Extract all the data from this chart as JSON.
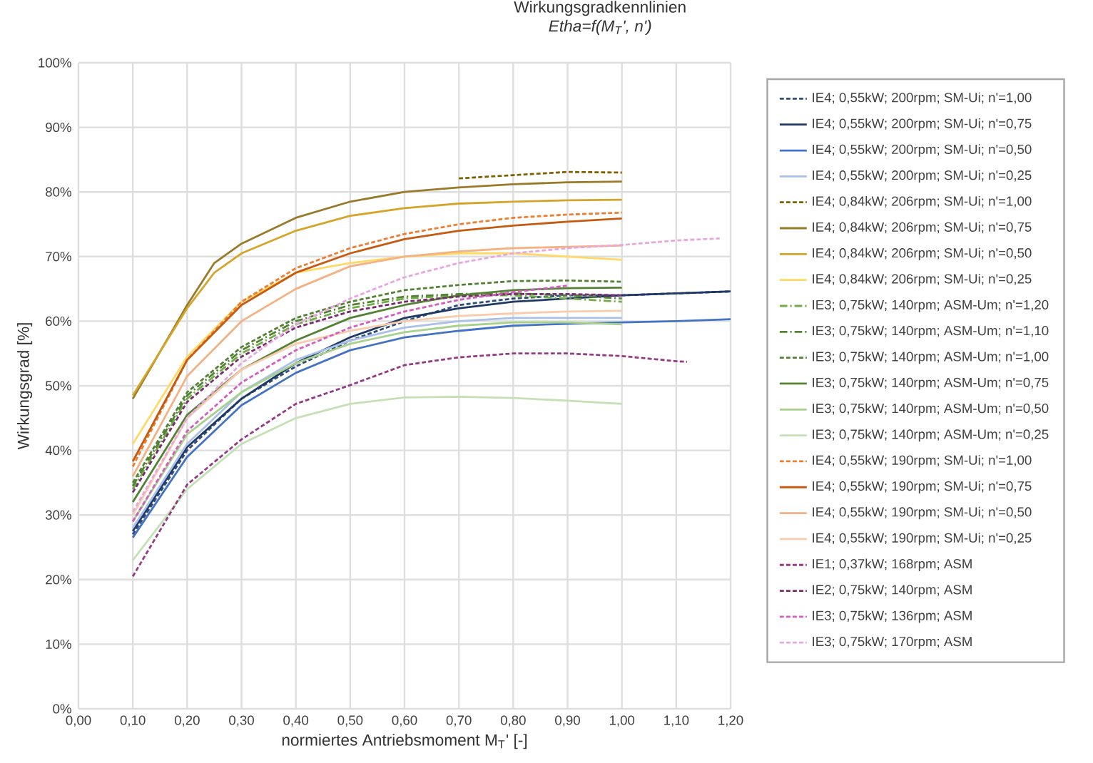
{
  "chart_data": {
    "type": "line",
    "title": "Wirkungsgradkennlinien",
    "subtitle": "Etha=f(M$_{T}$', n')",
    "xlabel": "normiertes Antriebsmoment M$_{T}$' [-]",
    "ylabel": "Wirkungsgrad [%]",
    "xlim": [
      0,
      1.2
    ],
    "ylim": [
      0,
      100
    ],
    "xticks": [
      {
        "value": 0,
        "label": "0,00"
      },
      {
        "value": 0.1,
        "label": "0,10"
      },
      {
        "value": 0.2,
        "label": "0,20"
      },
      {
        "value": 0.3,
        "label": "0,30"
      },
      {
        "value": 0.4,
        "label": "0,40"
      },
      {
        "value": 0.5,
        "label": "0,50"
      },
      {
        "value": 0.6,
        "label": "0,60"
      },
      {
        "value": 0.7,
        "label": "0,70"
      },
      {
        "value": 0.8,
        "label": "0,80"
      },
      {
        "value": 0.9,
        "label": "0,90"
      },
      {
        "value": 1.0,
        "label": "1,00"
      },
      {
        "value": 1.1,
        "label": "1,10"
      },
      {
        "value": 1.2,
        "label": "1,20"
      }
    ],
    "yticks": [
      {
        "value": 0,
        "label": "0%"
      },
      {
        "value": 10,
        "label": "10%"
      },
      {
        "value": 20,
        "label": "20%"
      },
      {
        "value": 30,
        "label": "30%"
      },
      {
        "value": 40,
        "label": "40%"
      },
      {
        "value": 50,
        "label": "50%"
      },
      {
        "value": 60,
        "label": "60%"
      },
      {
        "value": 70,
        "label": "70%"
      },
      {
        "value": 80,
        "label": "80%"
      },
      {
        "value": 90,
        "label": "90%"
      },
      {
        "value": 100,
        "label": "100%"
      }
    ],
    "grid": true,
    "legend": "right",
    "series": [
      {
        "name": "IE4; 0,55kW; 200rpm; SM-Ui; n'=1,00",
        "color": "#2f4b7c",
        "line_style": "dashed",
        "x": [
          0.1,
          0.2,
          0.3,
          0.4,
          0.5,
          0.6,
          0.7,
          0.8,
          0.9,
          1.0,
          1.1,
          1.2
        ],
        "values": [
          27,
          40,
          48,
          53,
          57,
          60,
          62.5,
          63.5,
          64,
          64,
          64.3,
          64.6
        ]
      },
      {
        "name": "IE4; 0,55kW; 200rpm; SM-Ui; n'=0,75",
        "color": "#1f3864",
        "line_style": "solid",
        "x": [
          0.1,
          0.2,
          0.3,
          0.4,
          0.5,
          0.6,
          0.7,
          0.8,
          0.9,
          1.0,
          1.1,
          1.2
        ],
        "values": [
          27.5,
          40.5,
          48,
          53.5,
          57.5,
          60.5,
          62,
          63,
          63.5,
          64,
          64.3,
          64.6
        ]
      },
      {
        "name": "IE4; 0,55kW; 200rpm; SM-Ui; n'=0,50",
        "color": "#4472c4",
        "line_style": "solid",
        "x": [
          0.1,
          0.2,
          0.3,
          0.4,
          0.5,
          0.6,
          0.7,
          0.8,
          0.9,
          1.0,
          1.1,
          1.2
        ],
        "values": [
          26.5,
          39,
          47,
          52,
          55.5,
          57.5,
          58.5,
          59.3,
          59.6,
          59.8,
          60,
          60.3
        ]
      },
      {
        "name": "IE4; 0,55kW; 200rpm; SM-Ui; n'=0,25",
        "color": "#a9c1e8",
        "line_style": "solid",
        "x": [
          0.1,
          0.2,
          0.3,
          0.4,
          0.5,
          0.6,
          0.7,
          0.8,
          0.9,
          1.0
        ],
        "values": [
          28,
          41,
          49,
          54,
          57,
          59,
          60,
          60.5,
          60.5,
          60.5
        ]
      },
      {
        "name": "IE4; 0,84kW; 206rpm; SM-Ui; n'=1,00",
        "color": "#7f6000",
        "line_style": "dashed",
        "x": [
          0.7,
          0.8,
          0.9,
          1.0
        ],
        "values": [
          82.1,
          82.6,
          83.1,
          83
        ]
      },
      {
        "name": "IE4; 0,84kW; 206rpm; SM-Ui; n'=0,75",
        "color": "#997a2a",
        "line_style": "solid",
        "x": [
          0.1,
          0.2,
          0.25,
          0.3,
          0.4,
          0.5,
          0.6,
          0.7,
          0.8,
          0.9,
          1.0
        ],
        "values": [
          48,
          62.5,
          69,
          72,
          76,
          78.5,
          80,
          80.7,
          81.2,
          81.5,
          81.6
        ]
      },
      {
        "name": "IE4; 0,84kW; 206rpm; SM-Ui; n'=0,50",
        "color": "#d4a52a",
        "line_style": "solid",
        "x": [
          0.1,
          0.2,
          0.25,
          0.3,
          0.4,
          0.5,
          0.6,
          0.7,
          0.8,
          0.9,
          1.0
        ],
        "values": [
          48.5,
          62,
          67.5,
          70.5,
          74,
          76.3,
          77.5,
          78.2,
          78.5,
          78.7,
          78.8
        ]
      },
      {
        "name": "IE4; 0,84kW; 206rpm; SM-Ui; n'=0,25",
        "color": "#ffd966",
        "line_style": "solid",
        "x": [
          0.1,
          0.2,
          0.3,
          0.4,
          0.5,
          0.6,
          0.7,
          0.8,
          0.9,
          1.0
        ],
        "values": [
          41,
          54.5,
          63,
          67.5,
          69,
          70,
          70.5,
          70.5,
          70,
          69.5
        ]
      },
      {
        "name": "IE3; 0,75kW; 140rpm; ASM-Um; n'=1,20",
        "color": "#70ad47",
        "line_style": "dashdot",
        "x": [
          0.1,
          0.2,
          0.3,
          0.4,
          0.5,
          0.6,
          0.7,
          0.8,
          0.9,
          1.0
        ],
        "values": [
          34,
          48,
          55,
          59.5,
          62,
          63.5,
          64,
          64,
          63.5,
          63
        ]
      },
      {
        "name": "IE3; 0,75kW; 140rpm; ASM-Um; n'=1,10",
        "color": "#548235",
        "line_style": "dashdot",
        "x": [
          0.1,
          0.2,
          0.3,
          0.4,
          0.5,
          0.6,
          0.7,
          0.8,
          0.9,
          1.0
        ],
        "values": [
          34.5,
          48.5,
          55.5,
          60,
          62.5,
          63.8,
          64.2,
          64.3,
          64,
          63.5
        ]
      },
      {
        "name": "IE3; 0,75kW; 140rpm; ASM-Um; n'=1,00",
        "color": "#548235",
        "line_style": "dashed",
        "x": [
          0.1,
          0.2,
          0.3,
          0.4,
          0.5,
          0.6,
          0.7,
          0.8,
          0.9,
          1.0
        ],
        "values": [
          35,
          49,
          56,
          60.5,
          63,
          64.8,
          65.6,
          66.2,
          66.3,
          66.1
        ]
      },
      {
        "name": "IE3; 0,75kW; 140rpm; ASM-Um; n'=0,75",
        "color": "#548235",
        "line_style": "solid",
        "x": [
          0.1,
          0.2,
          0.3,
          0.4,
          0.5,
          0.6,
          0.7,
          0.8,
          0.9,
          1.0
        ],
        "values": [
          32,
          45.5,
          52.5,
          57,
          60.5,
          62.5,
          64,
          64.8,
          65.1,
          65.2
        ]
      },
      {
        "name": "IE3; 0,75kW; 140rpm; ASM-Um; n'=0,50",
        "color": "#a9d18e",
        "line_style": "solid",
        "x": [
          0.1,
          0.2,
          0.3,
          0.4,
          0.5,
          0.6,
          0.7,
          0.8,
          0.9,
          1.0
        ],
        "values": [
          29,
          42.5,
          49,
          53.5,
          56.5,
          58.3,
          59.3,
          59.8,
          59.8,
          59.5
        ]
      },
      {
        "name": "IE3; 0,75kW; 140rpm; ASM-Um; n'=0,25",
        "color": "#c5e0b4",
        "line_style": "solid",
        "x": [
          0.1,
          0.2,
          0.3,
          0.4,
          0.5,
          0.6,
          0.7,
          0.8,
          0.9,
          1.0
        ],
        "values": [
          23,
          34,
          41,
          45,
          47.2,
          48.2,
          48.3,
          48.1,
          47.7,
          47.2
        ]
      },
      {
        "name": "IE4; 0,55kW; 190rpm; SM-Ui; n'=1,00",
        "color": "#ed7d31",
        "line_style": "dashed",
        "x": [
          0.1,
          0.2,
          0.3,
          0.4,
          0.5,
          0.6,
          0.7,
          0.8,
          0.9,
          1.0
        ],
        "values": [
          37.5,
          54,
          63,
          68.2,
          71.3,
          73.5,
          75,
          76,
          76.5,
          76.8
        ]
      },
      {
        "name": "IE4; 0,55kW; 190rpm; SM-Ui; n'=0,75",
        "color": "#c55a11",
        "line_style": "solid",
        "x": [
          0.1,
          0.2,
          0.3,
          0.4,
          0.5,
          0.6,
          0.7,
          0.8,
          0.9,
          1.0
        ],
        "values": [
          38.3,
          54,
          62.5,
          67.5,
          70.5,
          72.7,
          74,
          74.8,
          75.4,
          75.9
        ]
      },
      {
        "name": "IE4; 0,55kW; 190rpm; SM-Ui; n'=0,50",
        "color": "#f4b183",
        "line_style": "solid",
        "x": [
          0.1,
          0.2,
          0.3,
          0.4,
          0.5,
          0.6,
          0.7,
          0.8,
          0.9,
          1.0
        ],
        "values": [
          36,
          51.5,
          60,
          65,
          68.5,
          70,
          70.8,
          71.3,
          71.5,
          71.7
        ]
      },
      {
        "name": "IE4; 0,55kW; 190rpm; SM-Ui; n'=0,25",
        "color": "#f8cbad",
        "line_style": "solid",
        "x": [
          0.1,
          0.2,
          0.3,
          0.4,
          0.5,
          0.6,
          0.7,
          0.8,
          0.9,
          1.0
        ],
        "values": [
          30,
          45,
          52.5,
          56.5,
          58.5,
          60,
          60.8,
          61.2,
          61.5,
          61.6
        ]
      },
      {
        "name": "IE1; 0,37kW; 168rpm; ASM",
        "color": "#953b86",
        "line_style": "dashed",
        "x": [
          0.1,
          0.2,
          0.3,
          0.4,
          0.5,
          0.6,
          0.7,
          0.8,
          0.9,
          1.0,
          1.1,
          1.12
        ],
        "values": [
          20.5,
          34.7,
          41.7,
          47.2,
          50.1,
          53.2,
          54.4,
          55,
          55,
          54.6,
          53.8,
          53.7
        ]
      },
      {
        "name": "IE2; 0,75kW; 140rpm; ASM",
        "color": "#7b2c6e",
        "line_style": "dashed",
        "x": [
          0.1,
          0.2,
          0.3,
          0.4,
          0.5,
          0.6,
          0.7,
          0.8,
          0.9,
          1.0
        ],
        "values": [
          33.5,
          47.5,
          54.5,
          59,
          61.5,
          63,
          63.8,
          64.2,
          64.2,
          64
        ]
      },
      {
        "name": "IE3; 0,75kW; 136rpm; ASM",
        "color": "#d25fc0",
        "line_style": "dashed",
        "x": [
          0.1,
          0.2,
          0.3,
          0.4,
          0.5,
          0.6,
          0.7,
          0.8,
          0.9
        ],
        "values": [
          29,
          43,
          50.5,
          55.5,
          59,
          61.5,
          63.3,
          64.5,
          65.5
        ]
      },
      {
        "name": "IE3; 0,75kW; 170rpm; ASM",
        "color": "#e8a6df",
        "line_style": "dashed",
        "x": [
          0.1,
          0.2,
          0.3,
          0.4,
          0.5,
          0.6,
          0.7,
          0.8,
          0.9,
          1.0,
          1.1,
          1.18
        ],
        "values": [
          30.5,
          45,
          53.5,
          59.5,
          63.5,
          66.8,
          69,
          70.5,
          71.3,
          71.8,
          72.5,
          72.8
        ]
      }
    ]
  }
}
